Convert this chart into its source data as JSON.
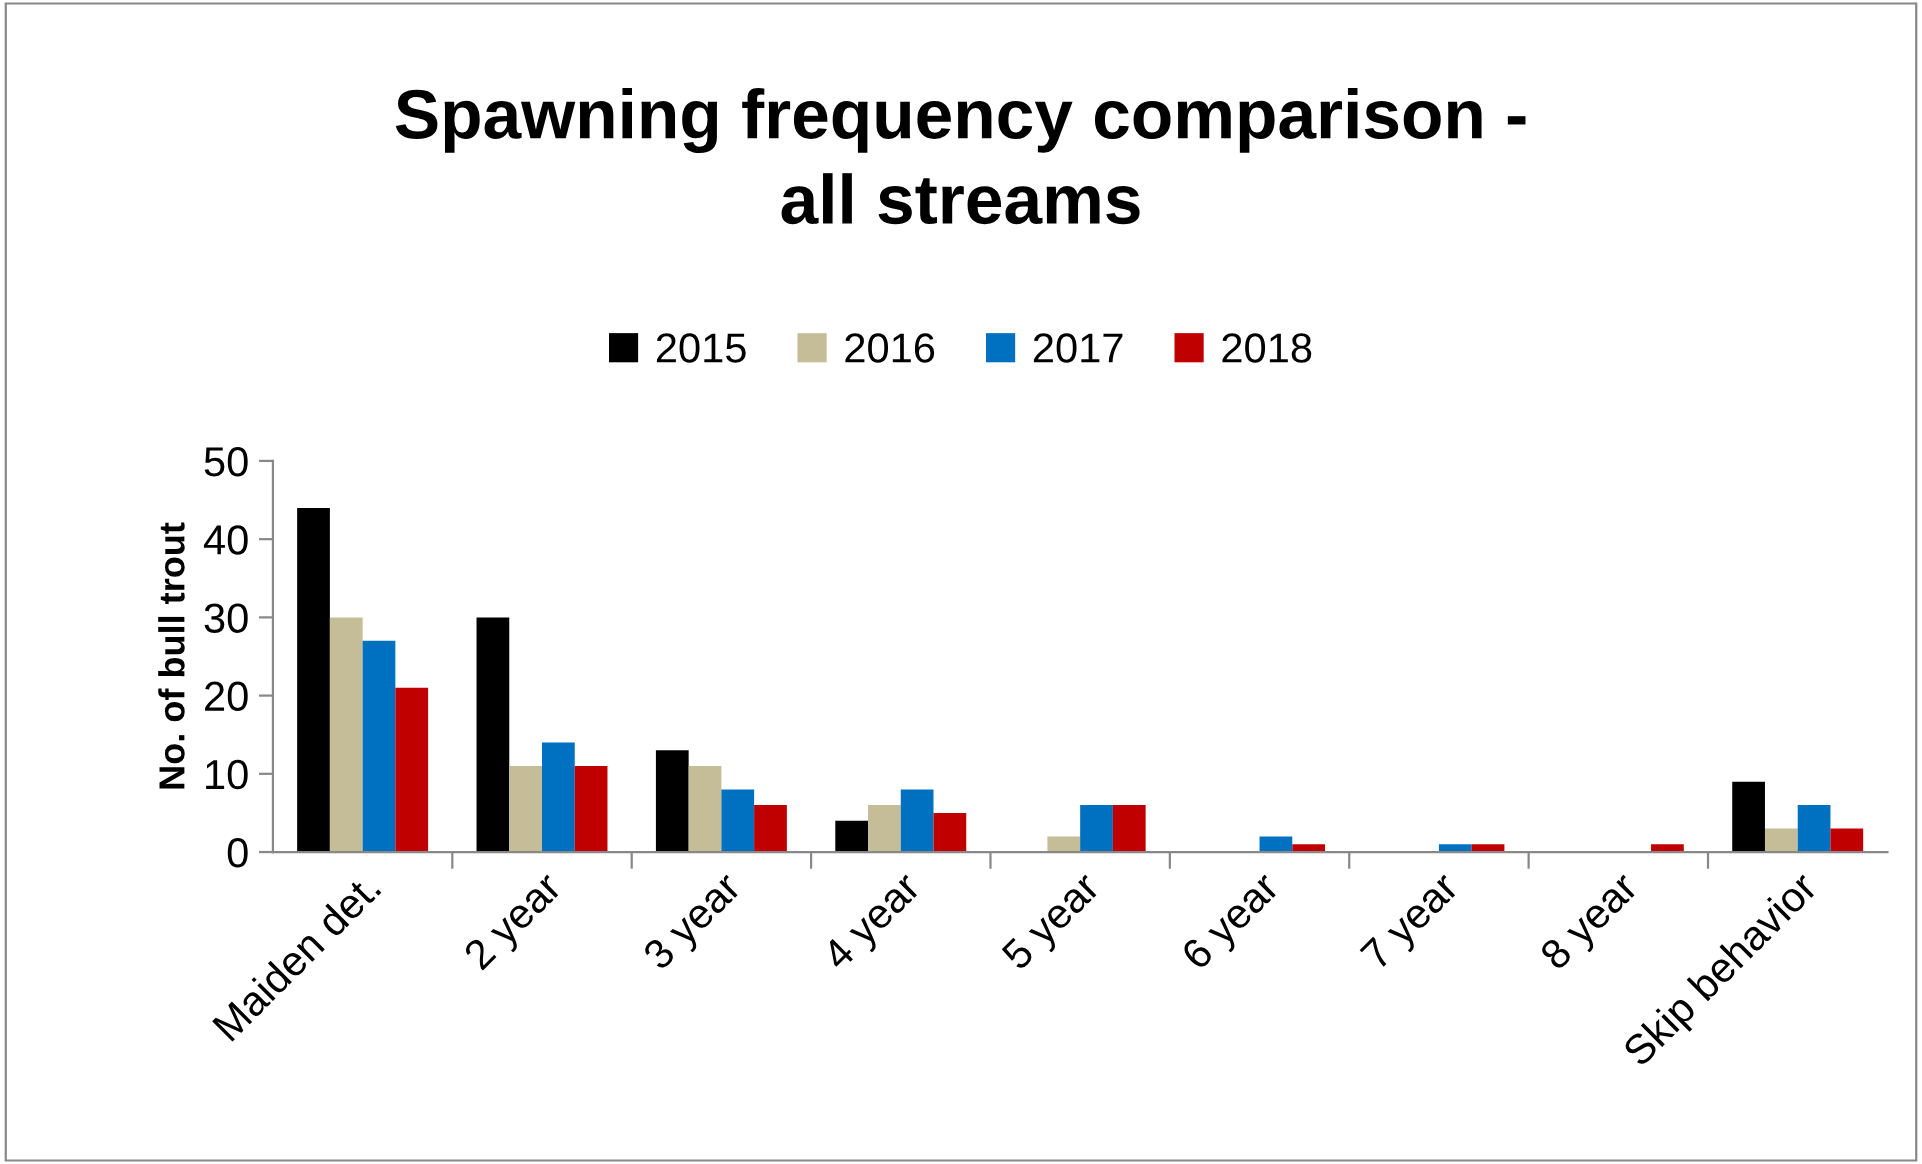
{
  "chart_data": {
    "type": "bar",
    "title": "Spawning frequency comparison -\nall streams",
    "ylabel": "No. of bull trout",
    "categories": [
      "Maiden det.",
      "2 year",
      "3 year",
      "4 year",
      "5 year",
      "6 year",
      "7 year",
      "8 year",
      "Skip behavior"
    ],
    "series": [
      {
        "name": "2015",
        "color": "#000000",
        "values": [
          44,
          30,
          13,
          4,
          0,
          0,
          0,
          0,
          9
        ]
      },
      {
        "name": "2016",
        "color": "#c4bd97",
        "values": [
          30,
          11,
          11,
          6,
          2,
          0,
          0,
          0,
          3
        ]
      },
      {
        "name": "2017",
        "color": "#0070c0",
        "values": [
          27,
          14,
          8,
          8,
          6,
          2,
          1,
          0,
          6
        ]
      },
      {
        "name": "2018",
        "color": "#c00000",
        "values": [
          21,
          11,
          6,
          5,
          6,
          1,
          1,
          1,
          3
        ]
      }
    ],
    "ylim": [
      0,
      50
    ],
    "yticks": [
      0,
      10,
      20,
      30,
      40,
      50
    ],
    "grid": false,
    "legend": "top"
  }
}
